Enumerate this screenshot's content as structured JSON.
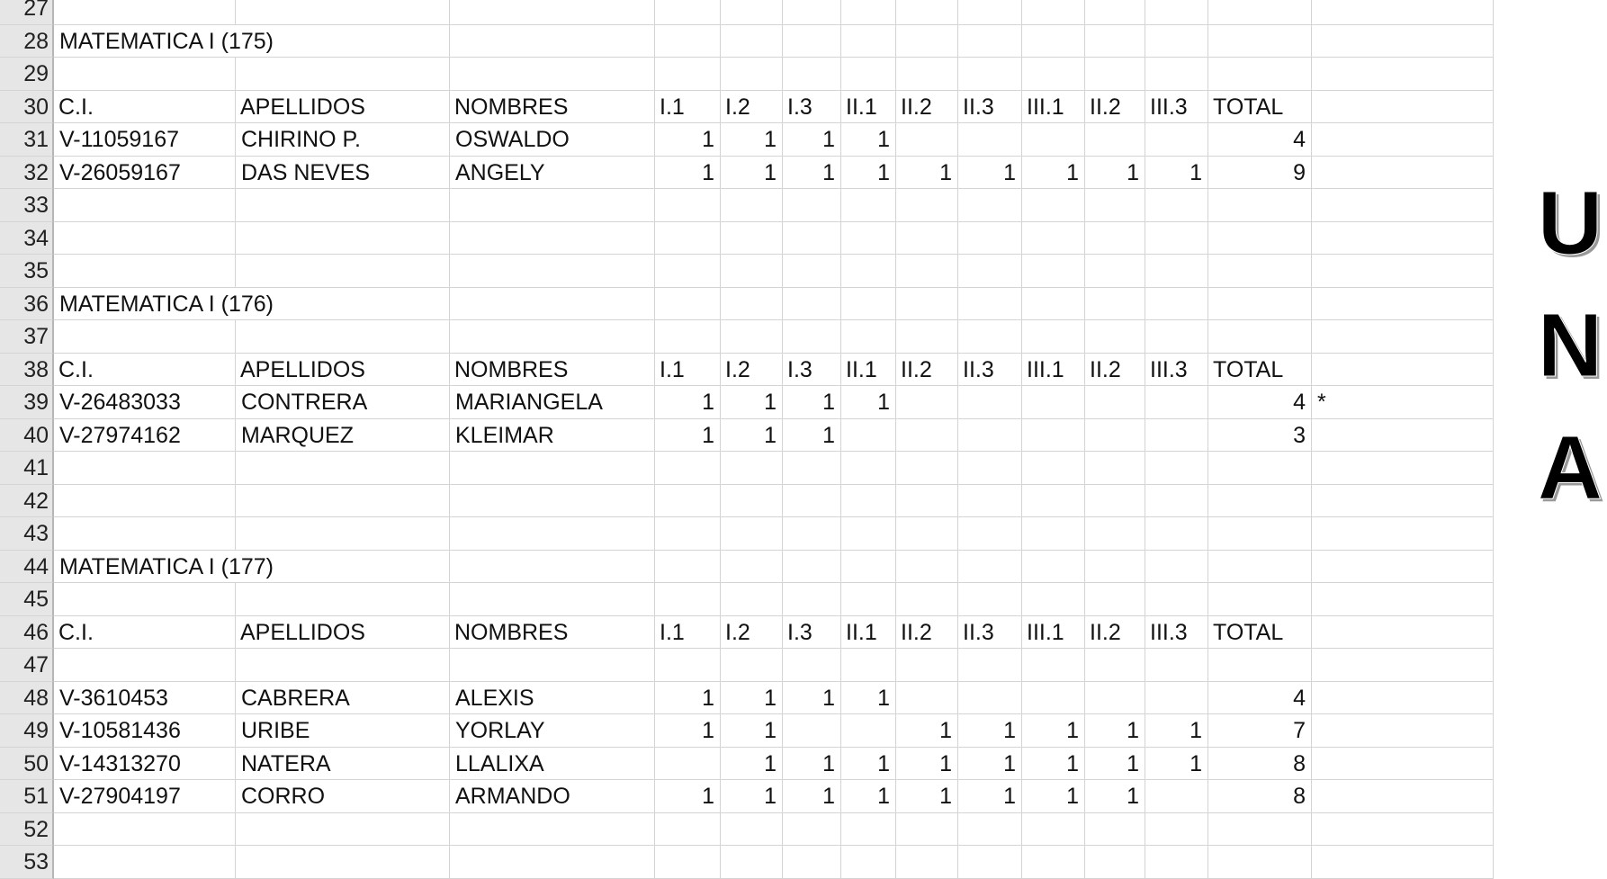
{
  "start_row": 27,
  "end_row": 53,
  "header_labels": [
    "C.I.",
    "APELLIDOS",
    "NOMBRES",
    "I.1",
    "I.2",
    "I.3",
    "II.1",
    "II.2",
    "II.3",
    "III.1",
    "II.2",
    "III.3",
    "TOTAL"
  ],
  "sections": [
    {
      "title_row": 28,
      "title": "MATEMATICA  I   (175)",
      "header_row": 30,
      "students": [
        {
          "row": 31,
          "ci": "V-11059167",
          "apellidos": "CHIRINO P.",
          "nombres": "OSWALDO",
          "scores": [
            "1",
            "1",
            "1",
            "1",
            "",
            "",
            "",
            "",
            ""
          ],
          "total": "4",
          "note": ""
        },
        {
          "row": 32,
          "ci": "V-26059167",
          "apellidos": "DAS NEVES",
          "nombres": "ANGELY",
          "scores": [
            "1",
            "1",
            "1",
            "1",
            "1",
            "1",
            "1",
            "1",
            "1"
          ],
          "total": "9",
          "note": ""
        }
      ]
    },
    {
      "title_row": 36,
      "title": "MATEMATICA  I   (176)",
      "header_row": 38,
      "students": [
        {
          "row": 39,
          "ci": "V-26483033",
          "apellidos": "CONTRERA",
          "nombres": "MARIANGELA",
          "scores": [
            "1",
            "1",
            "1",
            "1",
            "",
            "",
            "",
            "",
            ""
          ],
          "total": "4",
          "note": "*"
        },
        {
          "row": 40,
          "ci": "V-27974162",
          "apellidos": "MARQUEZ",
          "nombres": "KLEIMAR",
          "scores": [
            "1",
            "1",
            "1",
            "",
            "",
            "",
            "",
            "",
            ""
          ],
          "total": "3",
          "note": ""
        }
      ]
    },
    {
      "title_row": 44,
      "title": "MATEMATICA  I   (177)",
      "header_row": 46,
      "students": [
        {
          "row": 48,
          "ci": "V-3610453",
          "apellidos": "CABRERA",
          "nombres": "ALEXIS",
          "scores": [
            "1",
            "1",
            "1",
            "1",
            "",
            "",
            "",
            "",
            ""
          ],
          "total": "4",
          "note": ""
        },
        {
          "row": 49,
          "ci": "V-10581436",
          "apellidos": "URIBE",
          "nombres": "YORLAY",
          "scores": [
            "1",
            "1",
            "",
            "",
            "1",
            "1",
            "1",
            "1",
            "1"
          ],
          "total": "7",
          "note": ""
        },
        {
          "row": 50,
          "ci": "V-14313270",
          "apellidos": "NATERA",
          "nombres": "LLALIXA",
          "scores": [
            "",
            "1",
            "1",
            "1",
            "1",
            "1",
            "1",
            "1",
            "1"
          ],
          "total": "8",
          "note": ""
        },
        {
          "row": 51,
          "ci": "V-27904197",
          "apellidos": "CORRO",
          "nombres": "ARMANDO",
          "scores": [
            "1",
            "1",
            "1",
            "1",
            "1",
            "1",
            "1",
            "1",
            ""
          ],
          "total": "8",
          "note": ""
        }
      ]
    }
  ],
  "logo": {
    "letters": [
      "U",
      "N",
      "A"
    ]
  }
}
